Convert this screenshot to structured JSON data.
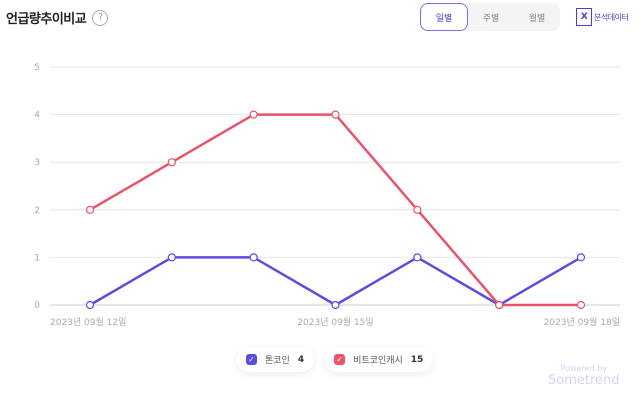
{
  "header": {
    "title": "언급량추이비교",
    "help_icon": "question-circle-icon"
  },
  "tabs": [
    {
      "label": "일별",
      "active": true
    },
    {
      "label": "주별",
      "active": false
    },
    {
      "label": "월별",
      "active": false
    }
  ],
  "export": {
    "label": "분석데이터",
    "icon": "excel-icon"
  },
  "chart_data": {
    "type": "line",
    "x": [
      "2023년 09월 12일",
      "2023년 09월 13일",
      "2023년 09월 14일",
      "2023년 09월 15일",
      "2023년 09월 16일",
      "2023년 09월 17일",
      "2023년 09월 18일"
    ],
    "x_tick_labels": [
      "2023년 09월 12일",
      "2023년 09월 15일",
      "2023년 09월 18일"
    ],
    "y_ticks": [
      "0",
      "1",
      "2",
      "3",
      "4",
      "5"
    ],
    "ylim": [
      0,
      5
    ],
    "grid": true,
    "legend_placement": "bottom",
    "series": [
      {
        "name": "톤코인",
        "total": "4",
        "color": "#5b4de0",
        "values": [
          0,
          1,
          1,
          0,
          1,
          0,
          1
        ]
      },
      {
        "name": "비트코인캐시",
        "total": "15",
        "color": "#e9546b",
        "values": [
          2,
          3,
          4,
          4,
          2,
          0,
          0
        ]
      }
    ]
  },
  "footer": {
    "powered": "Powered by",
    "brand": "Sometrend"
  }
}
